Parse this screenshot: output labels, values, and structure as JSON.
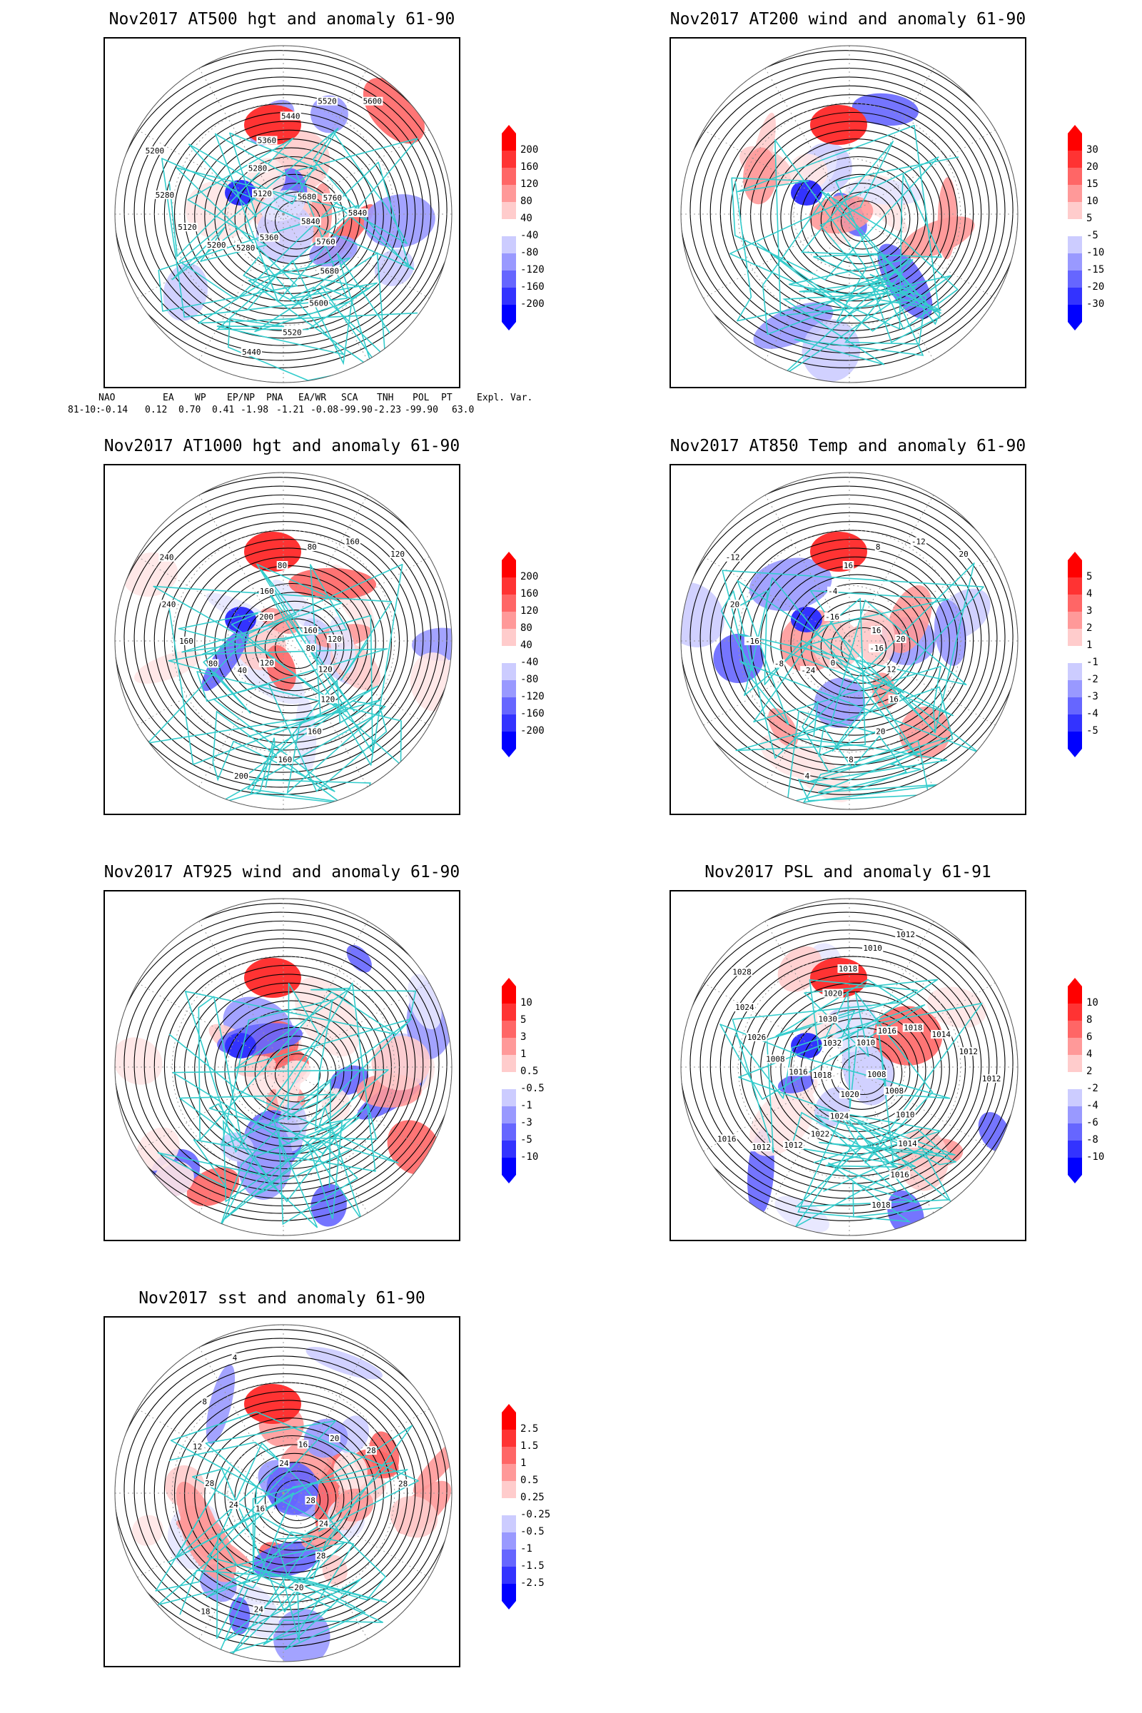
{
  "panels": [
    {
      "id": "p1",
      "title": "Nov2017 AT500 hgt and anomaly 61-90",
      "labels": [
        "5840",
        "5760",
        "5680",
        "5600",
        "5520",
        "5440",
        "5360",
        "5280",
        "5200",
        "5120",
        "5280",
        "5200",
        "5120",
        "5280",
        "5360",
        "5440",
        "5520",
        "5600",
        "5680",
        "5760",
        "5840"
      ],
      "cbar": {
        "ticks": [
          "200",
          "160",
          "120",
          "80",
          "40",
          "-40",
          "-80",
          "-120",
          "-160",
          "-200"
        ]
      }
    },
    {
      "id": "p2",
      "title": "Nov2017 AT200 wind and anomaly 61-90",
      "labels": [],
      "cbar": {
        "ticks": [
          "30",
          "20",
          "15",
          "10",
          "5",
          "-5",
          "-10",
          "-15",
          "-20",
          "-30"
        ]
      }
    },
    {
      "id": "p3",
      "title": "Nov2017 AT1000 hgt and anomaly 61-90",
      "labels": [
        "80",
        "120",
        "120",
        "160",
        "160",
        "200",
        "120",
        "40",
        "80",
        "160",
        "240",
        "240",
        "200",
        "160",
        "80",
        "80",
        "160",
        "120",
        "160",
        "120"
      ],
      "cbar": {
        "ticks": [
          "200",
          "160",
          "120",
          "80",
          "40",
          "-40",
          "-80",
          "-120",
          "-160",
          "-200"
        ]
      }
    },
    {
      "id": "p4",
      "title": "Nov2017 AT850 Temp and anomaly 61-90",
      "labels": [
        "-16",
        "12",
        "16",
        "20",
        "8",
        "4",
        "0",
        "-24",
        "-8",
        "-16",
        "20",
        "-12",
        "-16",
        "-4",
        "16",
        "8",
        "-12",
        "20",
        "16",
        "20"
      ],
      "cbar": {
        "ticks": [
          "5",
          "4",
          "3",
          "2",
          "1",
          "-1",
          "-2",
          "-3",
          "-4",
          "-5"
        ]
      }
    },
    {
      "id": "p5",
      "title": "Nov2017 AT925 wind and anomaly 61-90",
      "labels": [],
      "cbar": {
        "ticks": [
          "10",
          "5",
          "3",
          "1",
          "0.5",
          "-0.5",
          "-1",
          "-3",
          "-5",
          "-10"
        ]
      }
    },
    {
      "id": "p6",
      "title": "Nov2017 PSL and anomaly 61-91",
      "labels": [
        "1008",
        "1008",
        "1010",
        "1014",
        "1016",
        "1018",
        "1020",
        "1024",
        "1022",
        "1012",
        "1012",
        "1016",
        "1018",
        "1016",
        "1008",
        "1026",
        "1024",
        "1028",
        "1032",
        "1030",
        "1020",
        "1018",
        "1010",
        "1012",
        "1010",
        "1016",
        "1018",
        "1014",
        "1012",
        "1012"
      ],
      "cbar": {
        "ticks": [
          "10",
          "8",
          "6",
          "4",
          "2",
          "-2",
          "-4",
          "-6",
          "-8",
          "-10"
        ]
      }
    },
    {
      "id": "p7",
      "title": "Nov2017 sst and anomaly 61-90",
      "labels": [
        "28",
        "24",
        "28",
        "20",
        "24",
        "18",
        "16",
        "24",
        "28",
        "12",
        "8",
        "4",
        "24",
        "16",
        "20",
        "28",
        "28"
      ],
      "cbar": {
        "ticks": [
          "2.5",
          "1.5",
          "1",
          "0.5",
          "0.25",
          "-0.25",
          "-0.5",
          "-1",
          "-1.5",
          "-2.5"
        ]
      }
    }
  ],
  "indices": {
    "headers": [
      "NAO",
      "EA",
      "WP",
      "EP/NP",
      "PNA",
      "EA/WR",
      "SCA",
      "TNH",
      "POL",
      "PT",
      "Expl. Var."
    ],
    "row_label": "81-10:",
    "values": [
      "-0.14",
      "0.12",
      "0.70",
      "0.41",
      "-1.98",
      "-1.21",
      "-0.08",
      "-99.90",
      "-2.23",
      "-99.90",
      "63.0"
    ]
  },
  "colors": {
    "pos": [
      "#ffe6e6",
      "#ffcccc",
      "#ff9999",
      "#ff6666",
      "#ff3333",
      "#ff0000"
    ],
    "neg": [
      "#e6e6ff",
      "#ccccff",
      "#9999ff",
      "#6666ff",
      "#3333ff",
      "#0000ff"
    ],
    "coast": "#33cccc",
    "contour": "#000000",
    "grid": "#999999"
  }
}
